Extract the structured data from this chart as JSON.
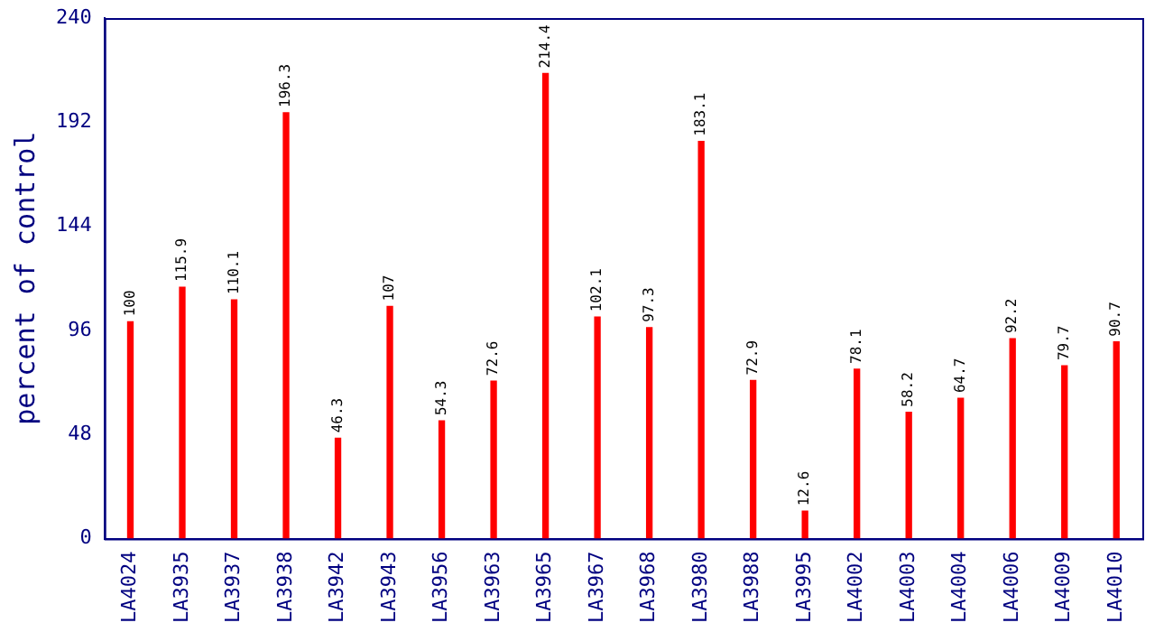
{
  "chart_data": {
    "type": "bar",
    "ylabel": "percent of control",
    "categories": [
      "LA4024",
      "LA3935",
      "LA3937",
      "LA3938",
      "LA3942",
      "LA3943",
      "LA3956",
      "LA3963",
      "LA3965",
      "LA3967",
      "LA3968",
      "LA3980",
      "LA3988",
      "LA3995",
      "LA4002",
      "LA4003",
      "LA4004",
      "LA4006",
      "LA4009",
      "LA4010"
    ],
    "values": [
      100,
      115.9,
      110.1,
      196.3,
      46.3,
      107,
      54.3,
      72.6,
      214.4,
      102.1,
      97.3,
      183.1,
      72.9,
      12.6,
      78.1,
      58.2,
      64.7,
      92.2,
      79.7,
      90.7
    ],
    "color": "#ff0000",
    "ylim": [
      0,
      240
    ],
    "yticks": [
      0,
      48,
      96,
      144,
      192,
      240
    ],
    "grid": false,
    "legend": false,
    "data_labels": true
  }
}
